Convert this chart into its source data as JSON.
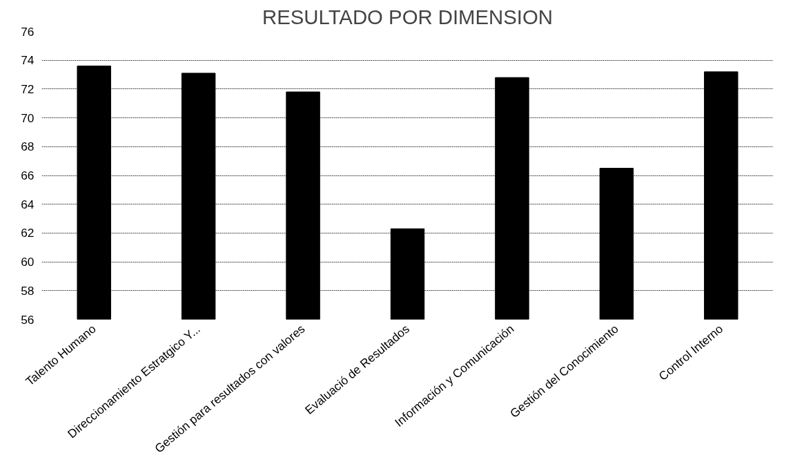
{
  "chart_data": {
    "type": "bar",
    "title": "RESULTADO POR DIMENSION",
    "categories": [
      "Talento Humano",
      "Direccionamiento Estratgico Y...",
      "Gestión para resultados con valores",
      "Evaluació de Resultados",
      "Información y Comunicación",
      "Gestión del Conocimiento",
      "Control Interno"
    ],
    "values": [
      73.6,
      73.1,
      71.8,
      62.3,
      72.8,
      66.5,
      73.2
    ],
    "color": "#000000",
    "ylim": [
      56,
      76
    ],
    "yticks": [
      56,
      58,
      60,
      62,
      64,
      66,
      68,
      70,
      72,
      74,
      76
    ],
    "grid": "y"
  }
}
